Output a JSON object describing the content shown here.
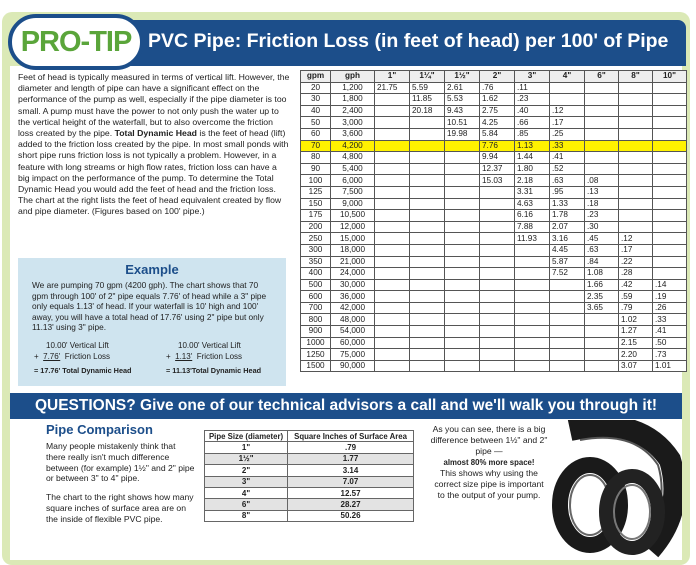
{
  "header": {
    "badge": "PRO-TIP",
    "title": "PVC Pipe: Friction Loss (in feet of head) per 100' of Pipe"
  },
  "intro": [
    "Feet of head is typically measured in terms of vertical lift. However, the diameter and length of pipe can have a significant effect on the performance of the pump as well, especially if the pipe diameter is too small. A pump must have the power to not only push the water up to the vertical height of the waterfall, but to also overcome the friction loss created by the pipe. ",
    "Total Dynamic Head",
    " is the feet of head (lift) added to the friction loss created by the pipe. In most small ponds with short pipe runs friction loss is not typically a problem. However, in a feature with long streams or high flow rates, friction loss can have a big impact on the performance of the pump. To determine the Total Dynamic Head you would add the feet of head and the friction loss. The chart at the right lists the feet of head equivalent created by flow and pipe diameter. (Figures based on 100' pipe.)"
  ],
  "example": {
    "title": "Example",
    "text": "We are pumping 70 gpm (4200 gph). The chart shows that 70 gpm through 100' of 2\" pipe equals 7.76' of head while a 3\" pipe only equals 1.13' of head. If your waterfall is 10' high and 100' away, you will have a total head of 17.76' using 2\" pipe but only 11.13' using 3\" pipe.",
    "calcs": [
      {
        "lift": "10.00'  Vertical Lift",
        "op": "+",
        "friction": "7.76'",
        "friction_label": "Friction Loss",
        "total": "= 17.76' Total Dynamic Head"
      },
      {
        "lift": "10.00'  Vertical Lift",
        "op": "+",
        "friction": "1.13'",
        "friction_label": "Friction Loss",
        "total": "= 11.13'Total Dynamic Head"
      }
    ]
  },
  "table": {
    "highlight_row": 5,
    "highlight_color": "#fff200",
    "header": [
      "gpm",
      "gph",
      "1\"",
      "1¼\"",
      "1½\"",
      "2\"",
      "3\"",
      "4\"",
      "6\"",
      "8\"",
      "10\""
    ],
    "rows": [
      [
        "20",
        "1,200",
        "21.75",
        "5.59",
        "2.61",
        ".76",
        ".11",
        null,
        null,
        null,
        null
      ],
      [
        "30",
        "1,800",
        null,
        "11.85",
        "5.53",
        "1.62",
        ".23",
        null,
        null,
        null,
        null
      ],
      [
        "40",
        "2,400",
        null,
        "20.18",
        "9.43",
        "2.75",
        ".40",
        ".12",
        null,
        null,
        null
      ],
      [
        "50",
        "3,000",
        null,
        null,
        "10.51",
        "4.25",
        ".66",
        ".17",
        null,
        null,
        null
      ],
      [
        "60",
        "3,600",
        null,
        null,
        "19.98",
        "5.84",
        ".85",
        ".25",
        null,
        null,
        null
      ],
      [
        "70",
        "4,200",
        null,
        null,
        null,
        "7.76",
        "1.13",
        ".33",
        null,
        null,
        null
      ],
      [
        "80",
        "4,800",
        null,
        null,
        null,
        "9.94",
        "1.44",
        ".41",
        null,
        null,
        null
      ],
      [
        "90",
        "5,400",
        null,
        null,
        null,
        "12.37",
        "1.80",
        ".52",
        null,
        null,
        null
      ],
      [
        "100",
        "6,000",
        null,
        null,
        null,
        "15.03",
        "2.18",
        ".63",
        ".08",
        null,
        null
      ],
      [
        "125",
        "7,500",
        null,
        null,
        null,
        null,
        "3.31",
        ".95",
        ".13",
        null,
        null
      ],
      [
        "150",
        "9,000",
        null,
        null,
        null,
        null,
        "4.63",
        "1.33",
        ".18",
        null,
        null
      ],
      [
        "175",
        "10,500",
        null,
        null,
        null,
        null,
        "6.16",
        "1.78",
        ".23",
        null,
        null
      ],
      [
        "200",
        "12,000",
        null,
        null,
        null,
        null,
        "7.88",
        "2.07",
        ".30",
        null,
        null
      ],
      [
        "250",
        "15,000",
        null,
        null,
        null,
        null,
        "11.93",
        "3.16",
        ".45",
        ".12",
        null
      ],
      [
        "300",
        "18,000",
        null,
        null,
        null,
        null,
        null,
        "4.45",
        ".63",
        ".17",
        null
      ],
      [
        "350",
        "21,000",
        null,
        null,
        null,
        null,
        null,
        "5.87",
        ".84",
        ".22",
        null
      ],
      [
        "400",
        "24,000",
        null,
        null,
        null,
        null,
        null,
        "7.52",
        "1.08",
        ".28",
        null
      ],
      [
        "500",
        "30,000",
        null,
        null,
        null,
        null,
        null,
        null,
        "1.66",
        ".42",
        ".14"
      ],
      [
        "600",
        "36,000",
        null,
        null,
        null,
        null,
        null,
        null,
        "2.35",
        ".59",
        ".19"
      ],
      [
        "700",
        "42,000",
        null,
        null,
        null,
        null,
        null,
        null,
        "3.65",
        ".79",
        ".26"
      ],
      [
        "800",
        "48,000",
        null,
        null,
        null,
        null,
        null,
        null,
        null,
        "1.02",
        ".33"
      ],
      [
        "900",
        "54,000",
        null,
        null,
        null,
        null,
        null,
        null,
        null,
        "1.27",
        ".41"
      ],
      [
        "1000",
        "60,000",
        null,
        null,
        null,
        null,
        null,
        null,
        null,
        "2.15",
        ".50"
      ],
      [
        "1250",
        "75,000",
        null,
        null,
        null,
        null,
        null,
        null,
        null,
        "2.20",
        ".73"
      ],
      [
        "1500",
        "90,000",
        null,
        null,
        null,
        null,
        null,
        null,
        null,
        "3.07",
        "1.01"
      ]
    ]
  },
  "questions": "QUESTIONS? Give one of our technical advisors a call and we'll walk you through it!",
  "comparison": {
    "title": "Pipe Comparison",
    "paragraphs": [
      "Many people mistakenly think that there really isn't much difference between (for example) 1½\" and 2\" pipe or between 3\" to 4\" pipe.",
      "The chart to the right shows how many square inches of surface area are on the inside of flexible PVC pipe."
    ],
    "header": [
      "Pipe Size (diameter)",
      "Square Inches of Surface Area"
    ],
    "rows": [
      [
        "1\"",
        ".79"
      ],
      [
        "1½\"",
        "1.77"
      ],
      [
        "2\"",
        "3.14"
      ],
      [
        "3\"",
        "7.07"
      ],
      [
        "4\"",
        "12.57"
      ],
      [
        "6\"",
        "28.27"
      ],
      [
        "8\"",
        "50.26"
      ]
    ],
    "note": [
      "As you can see, there is a big difference between 1½\" and 2\" pipe —",
      "almost 80% more space!",
      "This shows why using the correct size pipe is important to the output of your pump."
    ]
  }
}
